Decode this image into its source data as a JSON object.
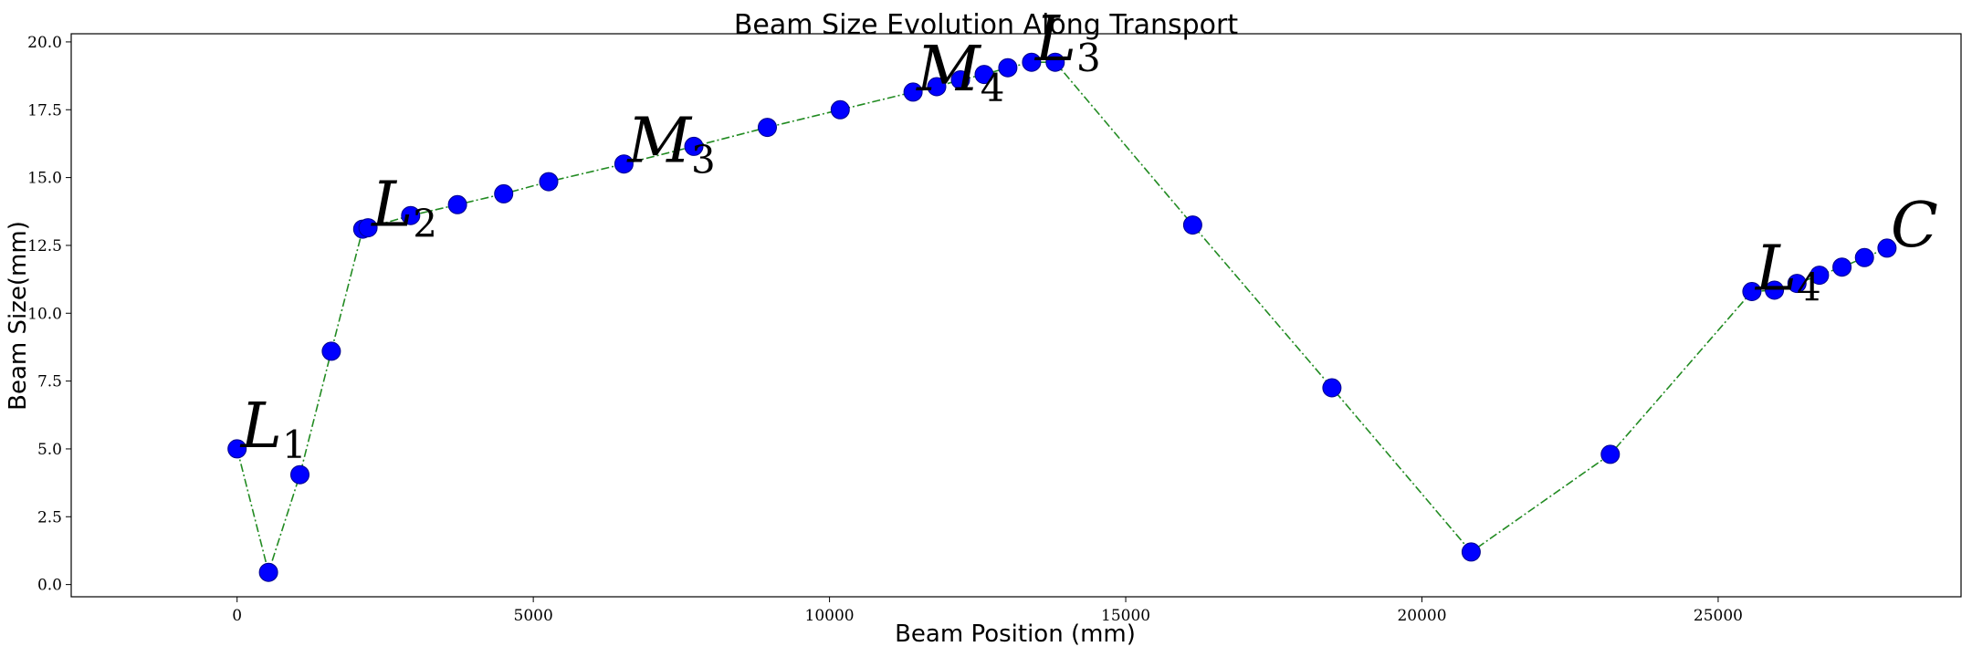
{
  "chart_data": {
    "type": "scatter",
    "title": "Beam Size Evolution Along Transport",
    "xlabel": "Beam Position (mm)",
    "ylabel": "Beam Size(mm)",
    "xlim": [
      -2800,
      29100
    ],
    "ylim": [
      -0.45,
      20.3
    ],
    "xticks": [
      0,
      5000,
      10000,
      15000,
      20000,
      25000
    ],
    "yticks": [
      0.0,
      2.5,
      5.0,
      7.5,
      10.0,
      12.5,
      15.0,
      17.5,
      20.0
    ],
    "xtick_labels": [
      "0",
      "5000",
      "10000",
      "15000",
      "20000",
      "25000"
    ],
    "ytick_labels": [
      "0.0",
      "2.5",
      "5.0",
      "7.5",
      "10.0",
      "12.5",
      "15.0",
      "17.5",
      "20.0"
    ],
    "grid": false,
    "line_style": "dash-dot",
    "line_color": "#228b22",
    "marker_color": "#0000ff",
    "series": [
      {
        "x": [
          0,
          530,
          1060,
          1590,
          2120,
          2210,
          2930,
          3720,
          4500,
          5260,
          6530,
          7710,
          8950,
          10180,
          11410,
          11810,
          12210,
          12610,
          13010,
          13410,
          13810,
          16130,
          18480,
          20830,
          23180,
          25570,
          25950,
          26330,
          26710,
          27090,
          27470,
          27850
        ],
        "y": [
          5.0,
          0.45,
          4.05,
          8.6,
          13.1,
          13.15,
          13.6,
          14.0,
          14.4,
          14.85,
          15.5,
          16.15,
          16.85,
          17.5,
          18.15,
          18.35,
          18.6,
          18.8,
          19.05,
          19.25,
          19.25,
          13.25,
          7.25,
          1.2,
          4.8,
          10.8,
          10.85,
          11.1,
          11.4,
          11.7,
          12.05,
          12.4
        ]
      }
    ],
    "annotations": [
      {
        "text": "L",
        "sub": "1",
        "x": 0,
        "y": 5.0
      },
      {
        "text": "L",
        "sub": "2",
        "x": 2210,
        "y": 13.15
      },
      {
        "text": "M",
        "sub": "3",
        "x": 6530,
        "y": 15.5
      },
      {
        "text": "M",
        "sub": "4",
        "x": 11410,
        "y": 18.15
      },
      {
        "text": "L",
        "sub": "3",
        "x": 13410,
        "y": 19.25
      },
      {
        "text": "L",
        "sub": "4",
        "x": 25570,
        "y": 10.8
      },
      {
        "text": "C",
        "sub": "",
        "x": 27850,
        "y": 12.4
      }
    ]
  }
}
